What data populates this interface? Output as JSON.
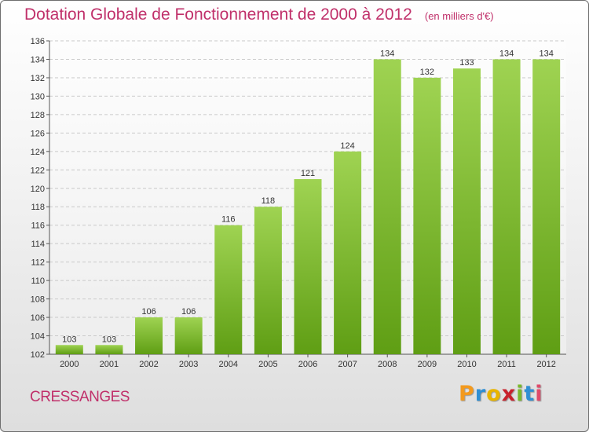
{
  "chart_data": {
    "type": "bar",
    "title": "Dotation Globale de Fonctionnement de 2000 à 2012",
    "subtitle": "(en milliers d'€)",
    "categories": [
      "2000",
      "2001",
      "2002",
      "2003",
      "2004",
      "2005",
      "2006",
      "2007",
      "2008",
      "2009",
      "2010",
      "2011",
      "2012"
    ],
    "values": [
      103,
      103,
      106,
      106,
      116,
      118,
      121,
      124,
      134,
      132,
      133,
      134,
      134
    ],
    "ylim": [
      102,
      136
    ],
    "yticks": [
      102,
      104,
      106,
      108,
      110,
      112,
      114,
      116,
      118,
      120,
      122,
      124,
      126,
      128,
      130,
      132,
      134,
      136
    ],
    "grid": true,
    "bar_color_light": "#9fd352",
    "bar_color_dark": "#5f9e14",
    "accent_color": "#c0306a"
  },
  "footer": {
    "commune": "CRESSANGES",
    "logo_text": "Proxiti",
    "logo_colors": [
      "#f39a1e",
      "#2f8fd4",
      "#e8b400",
      "#c8222d",
      "#7ab92d",
      "#2f8fd4",
      "#e04a6a"
    ]
  }
}
